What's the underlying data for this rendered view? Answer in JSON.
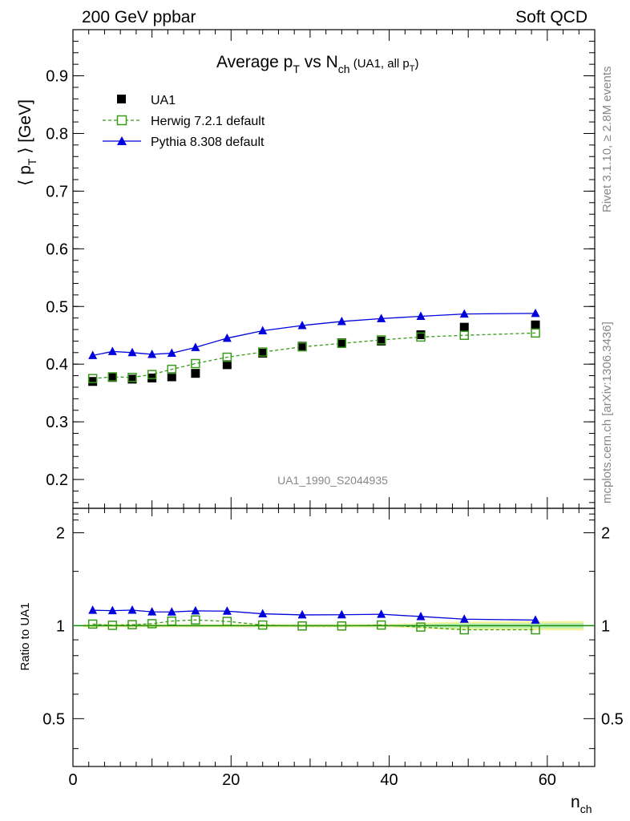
{
  "header": {
    "left": "200 GeV ppbar",
    "right": "Soft QCD"
  },
  "side": {
    "rivet": "Rivet 3.1.10, ≥ 2.8M events",
    "mcplots": "mcplots.cern.ch [arXiv:1306.3436]"
  },
  "watermark": "UA1_1990_S2044935",
  "title": {
    "pre": "Average p",
    "sub1": "T",
    "mid": " vs N",
    "sub2": "ch",
    "paren_pre": " (UA1, all p",
    "paren_sub": "T",
    "paren_post": ")"
  },
  "axes": {
    "ylabel_main": {
      "pre": "⟨ p",
      "sub": "T",
      "post": " ⟩ [GeV]"
    },
    "ylabel_ratio": "Ratio to UA1",
    "xlabel": {
      "pre": "n",
      "sub": "ch"
    },
    "main_yticks": [
      "0.2",
      "0.3",
      "0.4",
      "0.5",
      "0.6",
      "0.7",
      "0.8",
      "0.9"
    ],
    "ratio_yticks": [
      "0.5",
      "1",
      "2"
    ],
    "xticks": [
      "0",
      "20",
      "40",
      "60"
    ]
  },
  "legend": [
    {
      "label": "UA1",
      "color": "#000000",
      "marker": "filled-square"
    },
    {
      "label": "Herwig 7.2.1 default",
      "color": "#3a9a1a",
      "marker": "open-square"
    },
    {
      "label": "Pythia 8.308 default",
      "color": "#0000dd",
      "marker": "filled-triangle"
    }
  ],
  "chart_data": {
    "type": "scatter",
    "xlabel": "n_ch",
    "ylabel": "<p_T> [GeV]",
    "xlim": [
      0,
      66
    ],
    "ylim": [
      0.15,
      0.98
    ],
    "ratio_ylim": [
      0.35,
      2.4
    ],
    "x": [
      2.5,
      5,
      7.5,
      10,
      12.5,
      15.5,
      19.5,
      24,
      29,
      34,
      39,
      44,
      49.5,
      58.5
    ],
    "series": [
      {
        "name": "UA1",
        "values": [
          0.37,
          0.377,
          0.374,
          0.376,
          0.378,
          0.384,
          0.399,
          0.419,
          0.431,
          0.437,
          0.44,
          0.451,
          0.464,
          0.468
        ]
      },
      {
        "name": "Herwig 7.2.1 default",
        "values": [
          0.375,
          0.378,
          0.377,
          0.382,
          0.391,
          0.401,
          0.412,
          0.421,
          0.43,
          0.436,
          0.442,
          0.447,
          0.45,
          0.454
        ]
      },
      {
        "name": "Pythia 8.308 default",
        "values": [
          0.415,
          0.422,
          0.42,
          0.417,
          0.419,
          0.429,
          0.445,
          0.458,
          0.467,
          0.474,
          0.479,
          0.483,
          0.487,
          0.488
        ]
      }
    ],
    "ratio_series": [
      {
        "name": "Herwig 7.2.1 default",
        "values": [
          1.012,
          1.003,
          1.008,
          1.015,
          1.035,
          1.044,
          1.033,
          1.005,
          0.998,
          0.998,
          1.005,
          0.99,
          0.97,
          0.97
        ]
      },
      {
        "name": "Pythia 8.308 default",
        "values": [
          1.122,
          1.119,
          1.123,
          1.109,
          1.108,
          1.117,
          1.115,
          1.093,
          1.084,
          1.085,
          1.089,
          1.071,
          1.05,
          1.043
        ]
      }
    ]
  }
}
